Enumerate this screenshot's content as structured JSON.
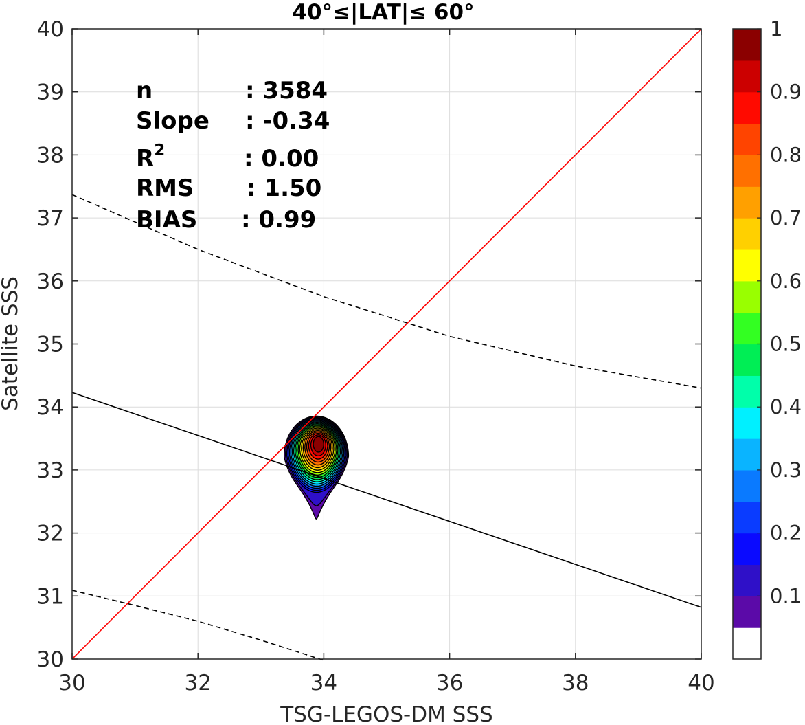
{
  "chart_data": {
    "type": "heatmap",
    "title": "40°≤|LAT|≤ 60°",
    "xlabel": "TSG-LEGOS-DM SSS",
    "ylabel": "Satellite SSS",
    "xlim": [
      30,
      40
    ],
    "ylim": [
      30,
      40
    ],
    "xticks": [
      "30",
      "32",
      "34",
      "36",
      "38",
      "40"
    ],
    "yticks": [
      "30",
      "31",
      "32",
      "33",
      "34",
      "35",
      "36",
      "37",
      "38",
      "39",
      "40"
    ],
    "grid": true,
    "stats": [
      {
        "label": "n",
        "value": ": 3584"
      },
      {
        "label": "Slope",
        "value": ": -0.34"
      },
      {
        "label": "R",
        "sup": "2",
        "value": ": 0.00"
      },
      {
        "label": "RMS",
        "value": ": 1.50"
      },
      {
        "label": "BIAS",
        "value": ": 0.99"
      }
    ],
    "one_to_one_line": {
      "x": [
        30,
        40
      ],
      "y": [
        30,
        40
      ],
      "color": "#ff0000"
    },
    "fit_line": {
      "x": [
        30,
        40
      ],
      "y": [
        34.23,
        30.82
      ],
      "color": "#000000"
    },
    "confidence_upper": {
      "x": [
        30,
        32,
        34,
        36,
        38,
        40
      ],
      "y": [
        37.37,
        36.5,
        35.75,
        35.12,
        34.65,
        34.3
      ]
    },
    "confidence_lower": {
      "x": [
        30,
        31,
        32,
        33,
        34
      ],
      "y": [
        31.09,
        30.85,
        30.6,
        30.3,
        29.98
      ]
    },
    "density_peak": {
      "x": 33.92,
      "y": 33.43
    },
    "contour_levels": [
      0.05,
      0.1,
      0.15,
      0.2,
      0.25,
      0.3,
      0.35,
      0.4,
      0.45,
      0.5,
      0.55,
      0.6,
      0.65,
      0.7,
      0.75,
      0.8,
      0.85,
      0.9,
      0.95
    ],
    "colorbar": {
      "range": [
        0,
        1
      ],
      "tick_labels": [
        "0.1",
        "0.2",
        "0.3",
        "0.4",
        "0.5",
        "0.6",
        "0.7",
        "0.8",
        "0.9",
        "1"
      ],
      "colors": [
        "#ffffff",
        "#5b0aa8",
        "#2f10c8",
        "#0a0aff",
        "#0a3cff",
        "#0a7aff",
        "#0ab4ff",
        "#00f0ff",
        "#00ffaa",
        "#00ee55",
        "#33ff22",
        "#99ff00",
        "#ffff00",
        "#ffd000",
        "#ffa000",
        "#ff7000",
        "#ff4400",
        "#ff0a00",
        "#cc0000",
        "#8b0000"
      ]
    }
  }
}
